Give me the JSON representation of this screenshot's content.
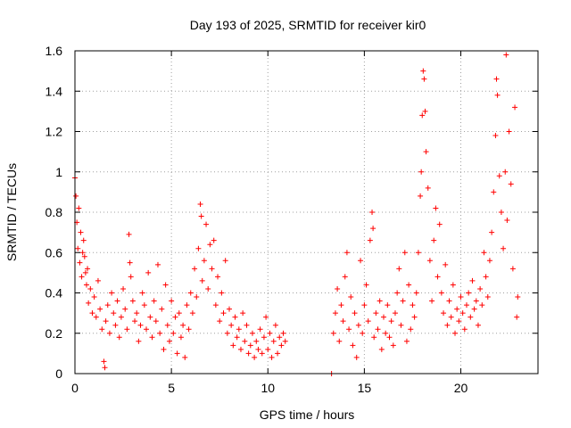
{
  "chart_data": {
    "type": "scatter",
    "title": "Day 193 of 2025, SRMTID for receiver kir0",
    "xlabel": "GPS time / hours",
    "ylabel": "SRMTID / TECUs",
    "xlim": [
      0,
      24
    ],
    "ylim": [
      0,
      1.6
    ],
    "x_ticks": [
      0,
      5,
      10,
      15,
      20
    ],
    "x_tick_labels": [
      "0",
      "5",
      "10",
      "15",
      "20"
    ],
    "y_ticks": [
      0,
      0.2,
      0.4,
      0.6,
      0.8,
      1,
      1.2,
      1.4,
      1.6
    ],
    "y_tick_labels": [
      "0",
      "0.2",
      "0.4",
      "0.6",
      "0.8",
      "1",
      "1.2",
      "1.4",
      "1.6"
    ],
    "grid": true,
    "marker": "plus",
    "series": [
      {
        "name": "SRMTID",
        "color": "#ff0000",
        "points": [
          [
            0.0,
            0.97
          ],
          [
            0.05,
            0.88
          ],
          [
            0.1,
            0.75
          ],
          [
            0.15,
            0.62
          ],
          [
            0.2,
            0.82
          ],
          [
            0.25,
            0.55
          ],
          [
            0.3,
            0.7
          ],
          [
            0.35,
            0.48
          ],
          [
            0.4,
            0.6
          ],
          [
            0.45,
            0.66
          ],
          [
            0.5,
            0.58
          ],
          [
            0.55,
            0.5
          ],
          [
            0.6,
            0.44
          ],
          [
            0.65,
            0.52
          ],
          [
            0.7,
            0.35
          ],
          [
            0.8,
            0.42
          ],
          [
            0.9,
            0.3
          ],
          [
            1.0,
            0.38
          ],
          [
            1.1,
            0.28
          ],
          [
            1.2,
            0.46
          ],
          [
            1.3,
            0.32
          ],
          [
            1.4,
            0.22
          ],
          [
            1.5,
            0.06
          ],
          [
            1.55,
            0.03
          ],
          [
            1.6,
            0.26
          ],
          [
            1.7,
            0.34
          ],
          [
            1.8,
            0.2
          ],
          [
            1.9,
            0.4
          ],
          [
            2.0,
            0.3
          ],
          [
            2.1,
            0.24
          ],
          [
            2.2,
            0.36
          ],
          [
            2.3,
            0.18
          ],
          [
            2.4,
            0.28
          ],
          [
            2.5,
            0.42
          ],
          [
            2.6,
            0.32
          ],
          [
            2.7,
            0.22
          ],
          [
            2.8,
            0.69
          ],
          [
            2.85,
            0.55
          ],
          [
            2.9,
            0.48
          ],
          [
            3.0,
            0.36
          ],
          [
            3.1,
            0.26
          ],
          [
            3.2,
            0.3
          ],
          [
            3.3,
            0.16
          ],
          [
            3.4,
            0.24
          ],
          [
            3.5,
            0.4
          ],
          [
            3.6,
            0.34
          ],
          [
            3.7,
            0.22
          ],
          [
            3.8,
            0.5
          ],
          [
            3.9,
            0.28
          ],
          [
            4.0,
            0.18
          ],
          [
            4.1,
            0.36
          ],
          [
            4.2,
            0.26
          ],
          [
            4.3,
            0.54
          ],
          [
            4.4,
            0.2
          ],
          [
            4.5,
            0.32
          ],
          [
            4.6,
            0.12
          ],
          [
            4.7,
            0.44
          ],
          [
            4.8,
            0.24
          ],
          [
            4.9,
            0.16
          ],
          [
            5.0,
            0.36
          ],
          [
            5.1,
            0.2
          ],
          [
            5.2,
            0.28
          ],
          [
            5.3,
            0.1
          ],
          [
            5.4,
            0.3
          ],
          [
            5.5,
            0.18
          ],
          [
            5.6,
            0.24
          ],
          [
            5.7,
            0.08
          ],
          [
            5.8,
            0.34
          ],
          [
            5.9,
            0.22
          ],
          [
            6.0,
            0.4
          ],
          [
            6.1,
            0.3
          ],
          [
            6.2,
            0.52
          ],
          [
            6.3,
            0.38
          ],
          [
            6.4,
            0.62
          ],
          [
            6.5,
            0.84
          ],
          [
            6.55,
            0.78
          ],
          [
            6.6,
            0.46
          ],
          [
            6.7,
            0.56
          ],
          [
            6.8,
            0.74
          ],
          [
            6.9,
            0.42
          ],
          [
            7.0,
            0.64
          ],
          [
            7.1,
            0.52
          ],
          [
            7.2,
            0.66
          ],
          [
            7.3,
            0.34
          ],
          [
            7.4,
            0.48
          ],
          [
            7.5,
            0.26
          ],
          [
            7.6,
            0.4
          ],
          [
            7.7,
            0.3
          ],
          [
            7.8,
            0.56
          ],
          [
            7.9,
            0.2
          ],
          [
            8.0,
            0.32
          ],
          [
            8.1,
            0.24
          ],
          [
            8.2,
            0.14
          ],
          [
            8.3,
            0.28
          ],
          [
            8.4,
            0.18
          ],
          [
            8.5,
            0.22
          ],
          [
            8.6,
            0.12
          ],
          [
            8.7,
            0.3
          ],
          [
            8.8,
            0.16
          ],
          [
            8.9,
            0.24
          ],
          [
            9.0,
            0.1
          ],
          [
            9.1,
            0.14
          ],
          [
            9.2,
            0.2
          ],
          [
            9.3,
            0.08
          ],
          [
            9.4,
            0.16
          ],
          [
            9.5,
            0.12
          ],
          [
            9.6,
            0.22
          ],
          [
            9.7,
            0.1
          ],
          [
            9.8,
            0.18
          ],
          [
            9.9,
            0.28
          ],
          [
            10.0,
            0.12
          ],
          [
            10.1,
            0.2
          ],
          [
            10.2,
            0.08
          ],
          [
            10.3,
            0.16
          ],
          [
            10.4,
            0.24
          ],
          [
            10.5,
            0.1
          ],
          [
            10.6,
            0.18
          ],
          [
            10.7,
            0.14
          ],
          [
            10.8,
            0.2
          ],
          [
            10.9,
            0.16
          ],
          [
            13.3,
            0.0
          ],
          [
            13.4,
            0.2
          ],
          [
            13.5,
            0.3
          ],
          [
            13.6,
            0.42
          ],
          [
            13.7,
            0.16
          ],
          [
            13.8,
            0.34
          ],
          [
            13.9,
            0.26
          ],
          [
            14.0,
            0.48
          ],
          [
            14.1,
            0.6
          ],
          [
            14.2,
            0.22
          ],
          [
            14.3,
            0.38
          ],
          [
            14.4,
            0.14
          ],
          [
            14.5,
            0.3
          ],
          [
            14.6,
            0.08
          ],
          [
            14.7,
            0.24
          ],
          [
            14.8,
            0.56
          ],
          [
            14.9,
            0.2
          ],
          [
            15.0,
            0.34
          ],
          [
            15.1,
            0.44
          ],
          [
            15.2,
            0.26
          ],
          [
            15.3,
            0.66
          ],
          [
            15.4,
            0.8
          ],
          [
            15.45,
            0.72
          ],
          [
            15.5,
            0.18
          ],
          [
            15.6,
            0.3
          ],
          [
            15.7,
            0.22
          ],
          [
            15.8,
            0.36
          ],
          [
            15.9,
            0.12
          ],
          [
            16.0,
            0.28
          ],
          [
            16.1,
            0.2
          ],
          [
            16.2,
            0.34
          ],
          [
            16.3,
            0.18
          ],
          [
            16.4,
            0.26
          ],
          [
            16.5,
            0.14
          ],
          [
            16.6,
            0.3
          ],
          [
            16.7,
            0.4
          ],
          [
            16.8,
            0.52
          ],
          [
            16.9,
            0.24
          ],
          [
            17.0,
            0.36
          ],
          [
            17.1,
            0.6
          ],
          [
            17.2,
            0.16
          ],
          [
            17.3,
            0.44
          ],
          [
            17.4,
            0.22
          ],
          [
            17.5,
            0.34
          ],
          [
            17.6,
            0.28
          ],
          [
            17.7,
            0.4
          ],
          [
            17.8,
            0.6
          ],
          [
            17.9,
            0.88
          ],
          [
            17.95,
            1.0
          ],
          [
            18.0,
            1.28
          ],
          [
            18.05,
            1.5
          ],
          [
            18.1,
            1.46
          ],
          [
            18.15,
            1.3
          ],
          [
            18.2,
            1.1
          ],
          [
            18.3,
            0.92
          ],
          [
            18.4,
            0.56
          ],
          [
            18.5,
            0.36
          ],
          [
            18.6,
            0.66
          ],
          [
            18.7,
            0.82
          ],
          [
            18.8,
            0.48
          ],
          [
            18.9,
            0.74
          ],
          [
            19.0,
            0.4
          ],
          [
            19.1,
            0.3
          ],
          [
            19.2,
            0.54
          ],
          [
            19.3,
            0.24
          ],
          [
            19.4,
            0.36
          ],
          [
            19.5,
            0.28
          ],
          [
            19.6,
            0.44
          ],
          [
            19.7,
            0.2
          ],
          [
            19.8,
            0.32
          ],
          [
            19.9,
            0.26
          ],
          [
            20.0,
            0.38
          ],
          [
            20.1,
            0.3
          ],
          [
            20.2,
            0.22
          ],
          [
            20.3,
            0.34
          ],
          [
            20.4,
            0.4
          ],
          [
            20.5,
            0.28
          ],
          [
            20.6,
            0.46
          ],
          [
            20.7,
            0.32
          ],
          [
            20.8,
            0.36
          ],
          [
            20.9,
            0.24
          ],
          [
            21.0,
            0.42
          ],
          [
            21.1,
            0.34
          ],
          [
            21.2,
            0.6
          ],
          [
            21.3,
            0.48
          ],
          [
            21.4,
            0.38
          ],
          [
            21.5,
            0.56
          ],
          [
            21.6,
            0.7
          ],
          [
            21.7,
            0.9
          ],
          [
            21.8,
            1.18
          ],
          [
            21.85,
            1.46
          ],
          [
            21.9,
            1.38
          ],
          [
            22.0,
            0.98
          ],
          [
            22.1,
            0.8
          ],
          [
            22.2,
            0.62
          ],
          [
            22.3,
            1.0
          ],
          [
            22.35,
            1.58
          ],
          [
            22.4,
            0.76
          ],
          [
            22.5,
            1.2
          ],
          [
            22.6,
            0.94
          ],
          [
            22.7,
            0.52
          ],
          [
            22.8,
            1.32
          ],
          [
            22.9,
            0.28
          ],
          [
            22.95,
            0.38
          ]
        ]
      }
    ]
  }
}
